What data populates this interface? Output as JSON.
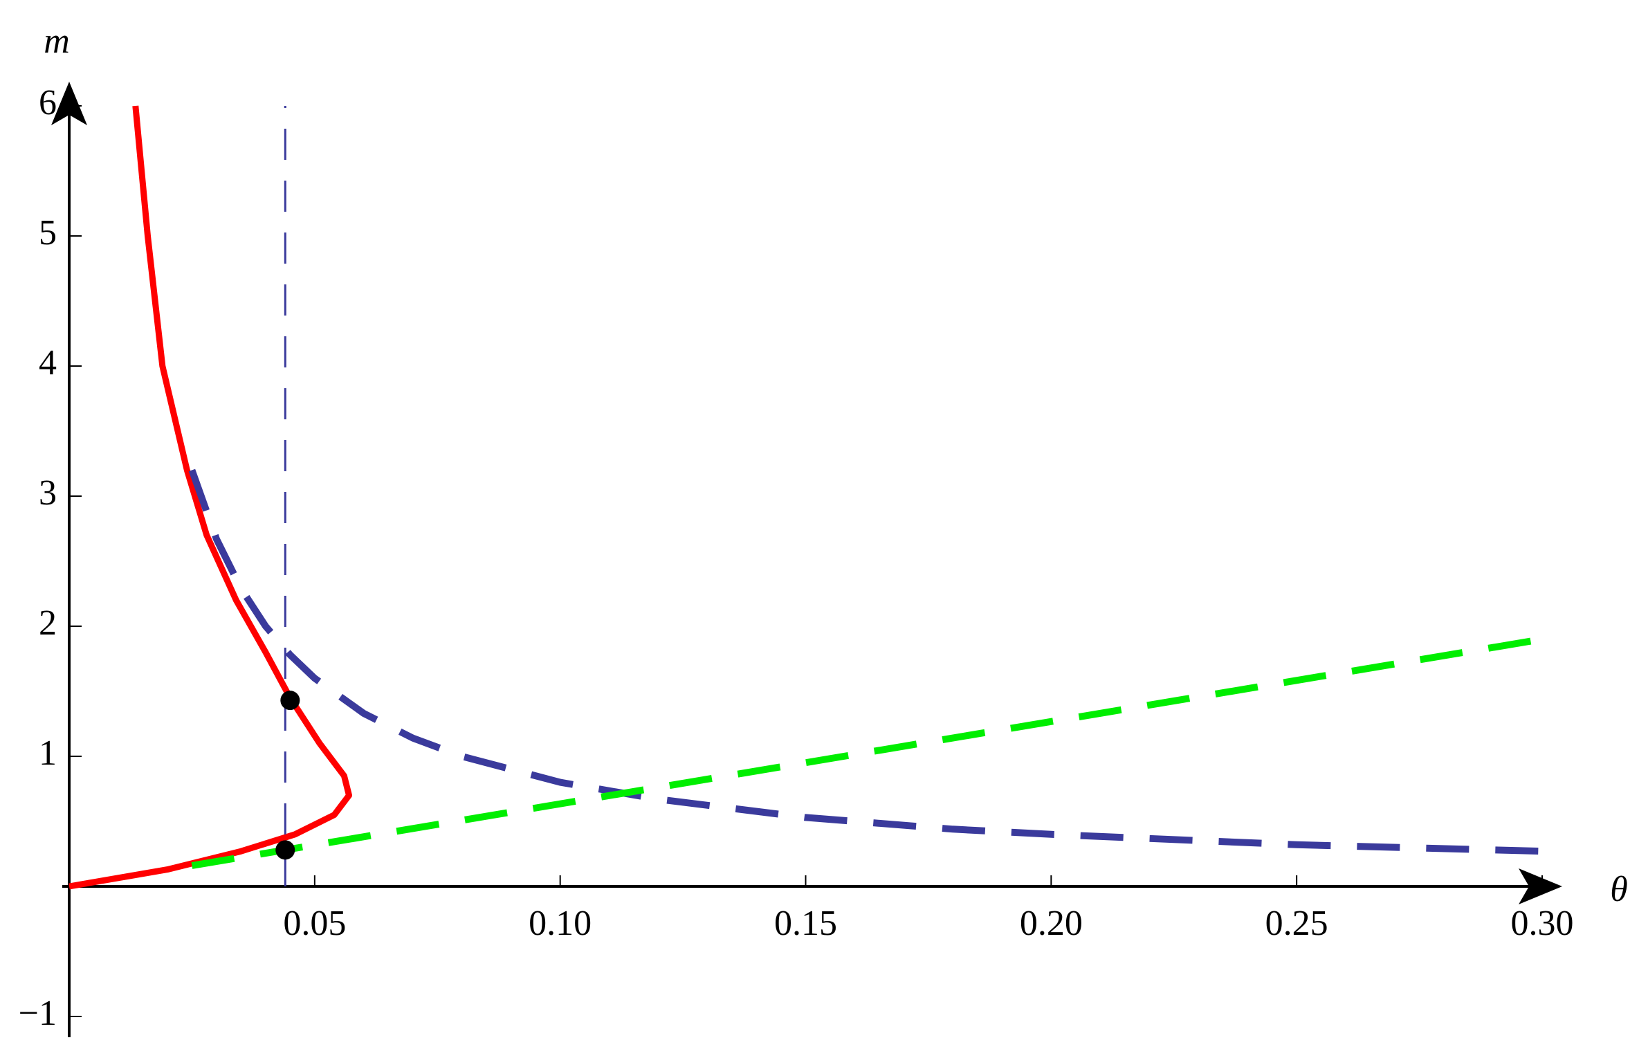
{
  "chart_data": {
    "type": "line",
    "x_label": "θ",
    "y_label": "m",
    "xlim": [
      0,
      0.3
    ],
    "ylim": [
      -1,
      6
    ],
    "xticks": [
      0.05,
      {
        "value": 0.1,
        "label": "0.10"
      },
      0.15,
      {
        "value": 0.2,
        "label": "0.20"
      },
      0.25,
      {
        "value": 0.3,
        "label": "0.30"
      }
    ],
    "yticks": [
      {
        "value": -1,
        "label": "−1"
      },
      1,
      2,
      3,
      4,
      5,
      6
    ],
    "series": [
      {
        "color": "#ff0000",
        "style": "solid",
        "width": 9,
        "x": [
          0.0135,
          0.016,
          0.019,
          0.024,
          0.028,
          0.034,
          0.04,
          0.045,
          0.051,
          0.056,
          0.057,
          0.054,
          0.046,
          0.035,
          0.02,
          0
        ],
        "values": [
          6,
          5,
          4,
          3.2,
          2.7,
          2.2,
          1.8,
          1.45,
          1.1,
          0.85,
          0.7,
          0.55,
          0.4,
          0.27,
          0.13,
          0
        ]
      },
      {
        "color": "#3a3a9c",
        "style": "dashed",
        "width": 10,
        "x": [
          0.025,
          0.03,
          0.035,
          0.04,
          0.045,
          0.05,
          0.06,
          0.07,
          0.08,
          0.1,
          0.12,
          0.15,
          0.18,
          0.2,
          0.25,
          0.3
        ],
        "values": [
          3.2,
          2.67,
          2.29,
          2,
          1.78,
          1.6,
          1.33,
          1.14,
          1,
          0.8,
          0.67,
          0.53,
          0.44,
          0.4,
          0.32,
          0.27
        ]
      },
      {
        "color": "#00ee00",
        "style": "dashed",
        "width": 10,
        "x": [
          0.025,
          0.3
        ],
        "values": [
          0.16,
          1.9
        ]
      },
      {
        "color": "#3a3a9c",
        "style": "thin-dashed",
        "width": 3,
        "x": [
          0.044,
          0.044
        ],
        "values": [
          0,
          6
        ]
      },
      {
        "color": "#000000",
        "style": "points",
        "x": [
          0.045,
          0.044
        ],
        "values": [
          1.43,
          0.28
        ]
      }
    ]
  }
}
